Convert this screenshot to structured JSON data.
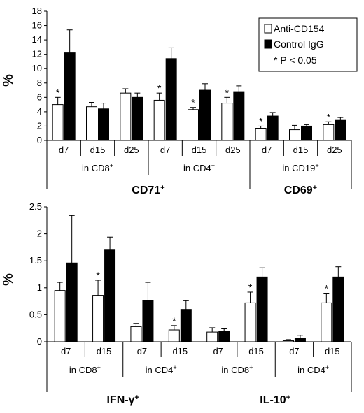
{
  "colors": {
    "anti": "#ffffff",
    "control": "#000000",
    "axis": "#000000"
  },
  "legend": {
    "items": [
      {
        "label": "Anti-CD154",
        "color": "#ffffff"
      },
      {
        "label": "Control IgG",
        "color": "#000000"
      }
    ],
    "note": "* P < 0.05"
  },
  "chart_data": [
    {
      "type": "bar",
      "ylabel": "%",
      "ylim": [
        0,
        18
      ],
      "yticks": [
        "0",
        "2",
        "4",
        "6",
        "8",
        "10",
        "12",
        "14",
        "16",
        "18"
      ],
      "categories": [
        "d7",
        "d15",
        "d25",
        "d7",
        "d15",
        "d25",
        "d7",
        "d15",
        "d25"
      ],
      "subgroups": [
        {
          "label": "in CD8",
          "sup": "+",
          "span": [
            0,
            2
          ]
        },
        {
          "label": "in CD4",
          "sup": "+",
          "span": [
            3,
            5
          ]
        },
        {
          "label": "in CD19",
          "sup": "+",
          "span": [
            6,
            8
          ]
        }
      ],
      "groups": [
        {
          "label": "CD71",
          "sup": "+",
          "span": [
            0,
            5
          ]
        },
        {
          "label": "CD69",
          "sup": "+",
          "span": [
            6,
            8
          ]
        }
      ],
      "series": [
        {
          "name": "Anti-CD154",
          "values": [
            5.0,
            4.7,
            6.6,
            5.6,
            4.3,
            5.2,
            1.7,
            1.5,
            2.2
          ],
          "errors": [
            1.0,
            0.6,
            0.6,
            1.0,
            0.3,
            0.8,
            0.3,
            0.6,
            0.4
          ]
        },
        {
          "name": "Control IgG",
          "values": [
            12.2,
            4.4,
            6.0,
            11.4,
            7.0,
            6.8,
            3.4,
            2.0,
            2.8
          ],
          "errors": [
            3.2,
            0.8,
            0.6,
            1.5,
            0.9,
            0.8,
            0.5,
            0.2,
            0.4
          ]
        }
      ],
      "significant": [
        true,
        false,
        false,
        true,
        true,
        true,
        true,
        false,
        true
      ],
      "legend_position": "top-right"
    },
    {
      "type": "bar",
      "ylabel": "%",
      "ylim": [
        0,
        2.5
      ],
      "yticks": [
        "0",
        "0.5",
        "1",
        "1.5",
        "2",
        "2.5"
      ],
      "categories": [
        "d7",
        "d15",
        "d7",
        "d15",
        "d7",
        "d15",
        "d7",
        "d15"
      ],
      "subgroups": [
        {
          "label": "in CD8",
          "sup": "+",
          "span": [
            0,
            1
          ]
        },
        {
          "label": "in CD4",
          "sup": "+",
          "span": [
            2,
            3
          ]
        },
        {
          "label": "in CD8",
          "sup": "+",
          "span": [
            4,
            5
          ]
        },
        {
          "label": "in CD4",
          "sup": "+",
          "span": [
            6,
            7
          ]
        }
      ],
      "groups": [
        {
          "label": "IFN-γ",
          "sup": "+",
          "span": [
            0,
            3
          ]
        },
        {
          "label": "IL-10",
          "sup": "+",
          "span": [
            4,
            7
          ]
        }
      ],
      "series": [
        {
          "name": "Anti-CD154",
          "values": [
            0.95,
            0.86,
            0.28,
            0.22,
            0.18,
            0.72,
            0.02,
            0.72
          ],
          "errors": [
            0.15,
            0.28,
            0.06,
            0.08,
            0.08,
            0.2,
            0.02,
            0.18
          ]
        },
        {
          "name": "Control IgG",
          "values": [
            1.46,
            1.7,
            0.76,
            0.6,
            0.2,
            1.2,
            0.07,
            1.2
          ],
          "errors": [
            0.88,
            0.24,
            0.34,
            0.16,
            0.04,
            0.17,
            0.05,
            0.19
          ]
        }
      ],
      "significant": [
        false,
        true,
        false,
        true,
        false,
        true,
        false,
        true
      ]
    }
  ]
}
